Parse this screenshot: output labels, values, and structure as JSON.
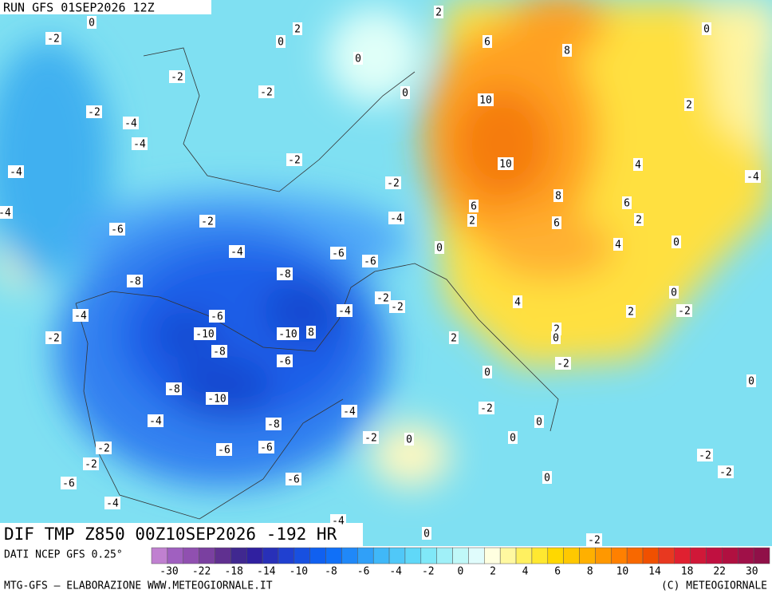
{
  "header": {
    "run": "RUN GFS 01SEP2026 12Z"
  },
  "map": {
    "title": "DIF TMP Z850 00Z10SEP2026 -192 HR",
    "labels": [
      0,
      2,
      -2,
      0,
      2,
      6,
      8,
      0,
      0,
      -2,
      -2,
      0,
      10,
      2,
      -2,
      -4,
      -4,
      -2,
      10,
      4,
      -4,
      -4,
      -2,
      8,
      6,
      -4,
      6,
      2,
      -4,
      -2,
      6,
      2,
      -6,
      0,
      4,
      -4,
      0,
      -6,
      -6,
      -8,
      -8,
      0,
      -2,
      -2,
      4,
      -4,
      -6,
      -4,
      2,
      -2,
      -10,
      -10,
      8,
      2,
      0,
      2,
      -2,
      -8,
      -6,
      -2,
      0,
      0,
      -8,
      -10,
      -2,
      -4,
      0,
      -4,
      -8,
      -2,
      0,
      0,
      -2,
      -6,
      -6,
      -2,
      -2,
      -2,
      0,
      -6,
      -6,
      -4,
      -4,
      0,
      -2
    ]
  },
  "legend": {
    "source": "DATI NCEP GFS 0.25°",
    "colors": [
      "#c080d0",
      "#a060c0",
      "#9050b0",
      "#7a40a0",
      "#603090",
      "#402890",
      "#3020a0",
      "#2830b8",
      "#2040d0",
      "#1850e0",
      "#1060f0",
      "#1070f8",
      "#2088f8",
      "#30a0f8",
      "#40b8f8",
      "#50c8f8",
      "#60d8f8",
      "#80e8f8",
      "#a0f0f8",
      "#c0f8f8",
      "#e0fcfc",
      "#ffffe0",
      "#fff8a0",
      "#fff060",
      "#ffe830",
      "#ffd800",
      "#ffc800",
      "#ffb000",
      "#ff9800",
      "#ff8000",
      "#f86800",
      "#f05000",
      "#e83820",
      "#e02030",
      "#d01838",
      "#c01040",
      "#b01040",
      "#a01048",
      "#901048"
    ],
    "ticks": [
      -30,
      -22,
      -18,
      -14,
      -10,
      -8,
      -6,
      -4,
      -2,
      0,
      2,
      4,
      6,
      8,
      10,
      14,
      18,
      22,
      30
    ]
  },
  "footer": {
    "left": "MTG-GFS — ELABORAZIONE WWW.METEOGIORNALE.IT",
    "right": "(C) METEOGIORNALE"
  }
}
